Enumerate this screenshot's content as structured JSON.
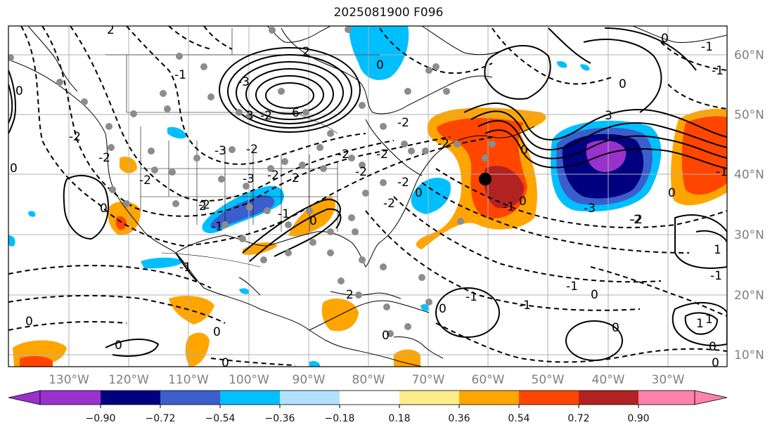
{
  "title": "2025081900 F096",
  "map": {
    "lon_labels": [
      "130°W",
      "120°W",
      "110°W",
      "100°W",
      "90°W",
      "80°W",
      "70°W",
      "60°W",
      "50°W",
      "40°W",
      "30°W"
    ],
    "lat_labels": [
      "60°N",
      "50°N",
      "40°N",
      "30°N",
      "20°N",
      "10°N"
    ],
    "contour_labels": [
      "2",
      "-1",
      "-2",
      "-2",
      "0",
      "0",
      "-2",
      "-3",
      "3",
      "6",
      "2",
      "-2",
      "-3",
      "0",
      "3",
      "-1",
      "0",
      "-1",
      "-2",
      "-2",
      "-3",
      "-2",
      "0",
      "-2",
      "-2",
      "-2",
      "1",
      "-1",
      "0",
      "-1",
      "0",
      "0",
      "2",
      "0",
      "0",
      "0",
      "1",
      "1",
      "0",
      "2",
      "-1",
      "0",
      "0",
      "0",
      "-1",
      "-1",
      "0",
      "0",
      "0",
      "0",
      "-1",
      "-2",
      "-1",
      "2",
      "-2",
      "-2",
      "-3",
      "-2",
      "0",
      "-2",
      "-2",
      "-1",
      "-1",
      "0"
    ]
  },
  "colorbar": {
    "ticks": [
      "−0.90",
      "−0.72",
      "−0.54",
      "−0.36",
      "−0.18",
      "0.18",
      "0.36",
      "0.54",
      "0.72",
      "0.90"
    ],
    "colors": [
      "#9932cc",
      "#000080",
      "#3a5fcd",
      "#00bfff",
      "#b0e2ff",
      "#ffffff",
      "#ffec8b",
      "#ffa500",
      "#ff4500",
      "#b22222",
      "#ff82ab"
    ]
  }
}
